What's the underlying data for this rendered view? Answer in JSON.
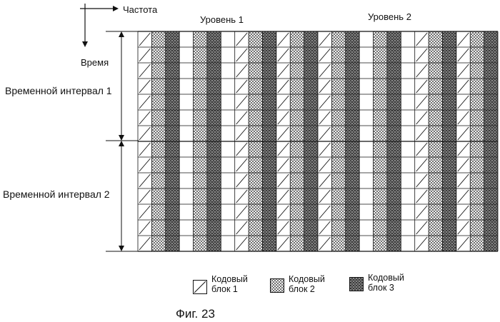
{
  "axes": {
    "frequency_label": "Частота",
    "time_label": "Время"
  },
  "levels": [
    {
      "label": "Уровень 1"
    },
    {
      "label": "Уровень 2"
    }
  ],
  "time_intervals": [
    {
      "label": "Временной интервал  1"
    },
    {
      "label": "Временной интервал  2"
    }
  ],
  "grid": {
    "column_pattern": [
      1,
      2,
      3,
      0,
      2,
      3,
      0,
      1,
      2,
      3,
      1,
      2,
      3,
      1,
      2,
      3,
      0,
      2,
      3,
      0,
      1,
      2,
      3,
      1,
      2,
      3
    ],
    "rows": 14,
    "rows_per_interval": 7
  },
  "legend": [
    {
      "line1": "Кодовый",
      "line2": "блок 1",
      "pattern": "hatch"
    },
    {
      "line1": "Кодовый",
      "line2": "блок 2",
      "pattern": "cross"
    },
    {
      "line1": "Кодовый",
      "line2": "блок 3",
      "pattern": "dots"
    }
  ],
  "caption": "Фиг. 23"
}
